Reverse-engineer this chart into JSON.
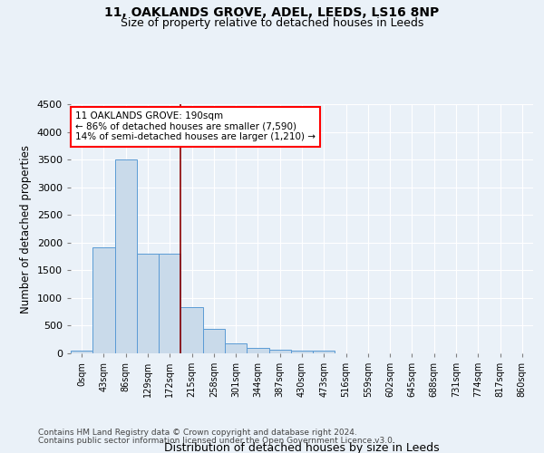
{
  "title1": "11, OAKLANDS GROVE, ADEL, LEEDS, LS16 8NP",
  "title2": "Size of property relative to detached houses in Leeds",
  "xlabel": "Distribution of detached houses by size in Leeds",
  "ylabel": "Number of detached properties",
  "bar_labels": [
    "0sqm",
    "43sqm",
    "86sqm",
    "129sqm",
    "172sqm",
    "215sqm",
    "258sqm",
    "301sqm",
    "344sqm",
    "387sqm",
    "430sqm",
    "473sqm",
    "516sqm",
    "559sqm",
    "602sqm",
    "645sqm",
    "688sqm",
    "731sqm",
    "774sqm",
    "817sqm",
    "860sqm"
  ],
  "bar_heights": [
    50,
    1920,
    3500,
    1800,
    1800,
    840,
    450,
    175,
    100,
    65,
    55,
    50,
    0,
    0,
    0,
    0,
    0,
    0,
    0,
    0,
    0
  ],
  "bar_color": "#c9daea",
  "bar_edge_color": "#5b9bd5",
  "ylim": [
    0,
    4500
  ],
  "yticks": [
    0,
    500,
    1000,
    1500,
    2000,
    2500,
    3000,
    3500,
    4000,
    4500
  ],
  "annotation_title": "11 OAKLANDS GROVE: 190sqm",
  "annotation_line1": "← 86% of detached houses are smaller (7,590)",
  "annotation_line2": "14% of semi-detached houses are larger (1,210) →",
  "footnote1": "Contains HM Land Registry data © Crown copyright and database right 2024.",
  "footnote2": "Contains public sector information licensed under the Open Government Licence v3.0.",
  "bg_color": "#eaf1f8",
  "grid_color": "#ffffff",
  "red_line_x": 4.5
}
